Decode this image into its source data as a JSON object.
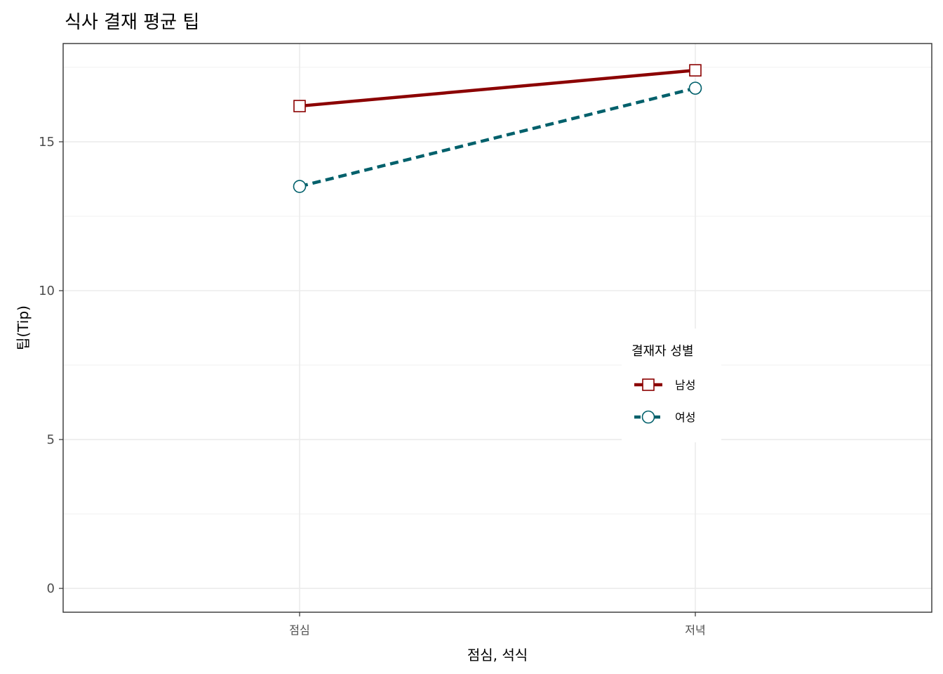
{
  "chart_data": {
    "type": "line",
    "title": "식사 결재 평균 팁",
    "xlabel": "점심, 석식",
    "ylabel": "팁(Tip)",
    "categories": [
      "점심",
      "저녁"
    ],
    "ylim": [
      -0.8,
      18.3
    ],
    "yticks": [
      0,
      5,
      10,
      15
    ],
    "grid": true,
    "legend": {
      "title": "결재자 성별",
      "placement": "right-center (inside plot)"
    },
    "series": [
      {
        "name": "남성",
        "values": [
          16.2,
          17.4
        ],
        "color": "#8b0000",
        "linestyle": "solid",
        "marker": "square"
      },
      {
        "name": "여성",
        "values": [
          13.5,
          16.8
        ],
        "color": "#00606b",
        "linestyle": "dashed",
        "marker": "circle"
      }
    ]
  }
}
